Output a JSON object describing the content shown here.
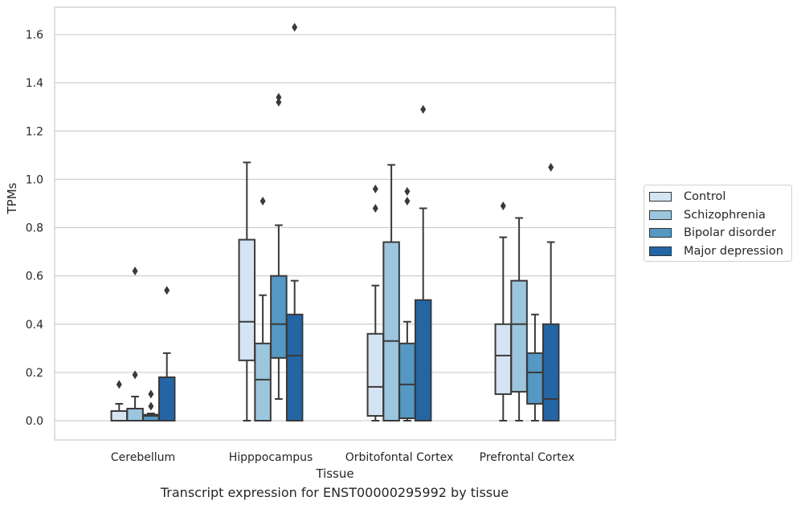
{
  "chart_data": {
    "type": "box",
    "xlabel": "Tissue",
    "ylabel": "TPMs",
    "caption": "Transcript expression for ENST00000295992 by tissue",
    "ylim": [
      -0.08,
      1.72
    ],
    "yticks": [
      "0.0",
      "0.2",
      "0.4",
      "0.6",
      "0.8",
      "1.0",
      "1.2",
      "1.4",
      "1.6"
    ],
    "grid": "horizontal",
    "legend_position": "outside-right",
    "categories": [
      "Cerebellum",
      "Hipppocampus",
      "Orbitofontal Cortex",
      "Prefrontal Cortex"
    ],
    "series": [
      {
        "name": "Control",
        "color": "#d5e4f3",
        "boxes": [
          {
            "whisker_low": 0.0,
            "q1": 0.0,
            "median": 0.0,
            "q3": 0.04,
            "whisker_high": 0.07,
            "outliers": [
              0.15
            ]
          },
          {
            "whisker_low": 0.0,
            "q1": 0.25,
            "median": 0.41,
            "q3": 0.75,
            "whisker_high": 1.07,
            "outliers": []
          },
          {
            "whisker_low": 0.0,
            "q1": 0.02,
            "median": 0.14,
            "q3": 0.36,
            "whisker_high": 0.56,
            "outliers": [
              0.88,
              0.96
            ]
          },
          {
            "whisker_low": 0.0,
            "q1": 0.11,
            "median": 0.27,
            "q3": 0.4,
            "whisker_high": 0.76,
            "outliers": [
              0.89
            ]
          }
        ]
      },
      {
        "name": "Schizophrenia",
        "color": "#9cc6dd",
        "boxes": [
          {
            "whisker_low": 0.0,
            "q1": 0.0,
            "median": 0.0,
            "q3": 0.05,
            "whisker_high": 0.1,
            "outliers": [
              0.19,
              0.62
            ]
          },
          {
            "whisker_low": 0.0,
            "q1": 0.0,
            "median": 0.17,
            "q3": 0.32,
            "whisker_high": 0.52,
            "outliers": [
              0.91
            ]
          },
          {
            "whisker_low": 0.0,
            "q1": 0.0,
            "median": 0.33,
            "q3": 0.74,
            "whisker_high": 1.06,
            "outliers": []
          },
          {
            "whisker_low": 0.0,
            "q1": 0.12,
            "median": 0.4,
            "q3": 0.58,
            "whisker_high": 0.84,
            "outliers": []
          }
        ]
      },
      {
        "name": "Bipolar disorder",
        "color": "#5598c4",
        "boxes": [
          {
            "whisker_low": 0.0,
            "q1": 0.0,
            "median": 0.02,
            "q3": 0.025,
            "whisker_high": 0.03,
            "outliers": [
              0.06,
              0.11
            ]
          },
          {
            "whisker_low": 0.09,
            "q1": 0.26,
            "median": 0.4,
            "q3": 0.6,
            "whisker_high": 0.81,
            "outliers": [
              1.32,
              1.34
            ]
          },
          {
            "whisker_low": 0.0,
            "q1": 0.01,
            "median": 0.15,
            "q3": 0.32,
            "whisker_high": 0.41,
            "outliers": [
              0.91,
              0.95
            ]
          },
          {
            "whisker_low": 0.0,
            "q1": 0.07,
            "median": 0.2,
            "q3": 0.28,
            "whisker_high": 0.44,
            "outliers": []
          }
        ]
      },
      {
        "name": "Major depression",
        "color": "#2465a4",
        "boxes": [
          {
            "whisker_low": 0.0,
            "q1": 0.0,
            "median": 0.0,
            "q3": 0.18,
            "whisker_high": 0.28,
            "outliers": [
              0.54
            ]
          },
          {
            "whisker_low": 0.0,
            "q1": 0.0,
            "median": 0.27,
            "q3": 0.44,
            "whisker_high": 0.58,
            "outliers": [
              1.63
            ]
          },
          {
            "whisker_low": 0.0,
            "q1": 0.0,
            "median": 0.0,
            "q3": 0.5,
            "whisker_high": 0.88,
            "outliers": [
              1.29
            ]
          },
          {
            "whisker_low": 0.0,
            "q1": 0.0,
            "median": 0.09,
            "q3": 0.4,
            "whisker_high": 0.74,
            "outliers": [
              1.05
            ]
          }
        ]
      }
    ]
  }
}
